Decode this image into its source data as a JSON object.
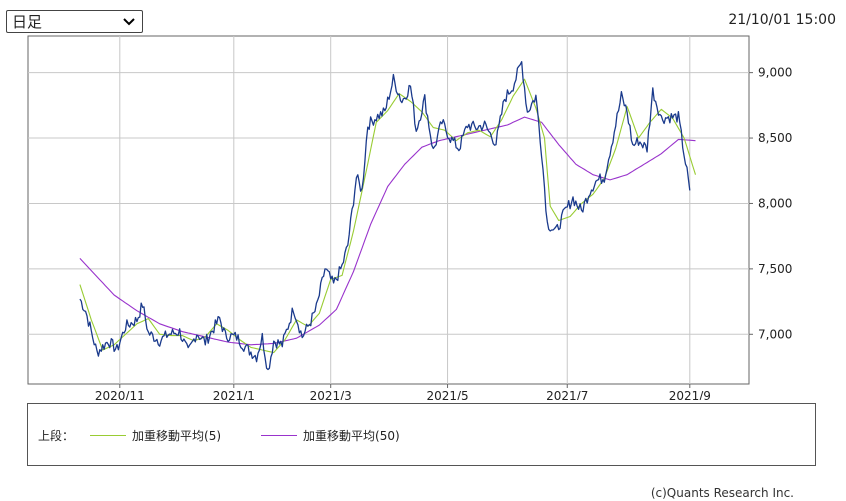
{
  "controls": {
    "period_label": "日足"
  },
  "timestamp": "21/10/01 15:00",
  "legend": {
    "prefix": "上段：",
    "items": [
      {
        "label": "加重移動平均(5)",
        "color": "#99cc33"
      },
      {
        "label": "加重移動平均(50)",
        "color": "#9933cc"
      }
    ]
  },
  "credit": "(c)Quants Research Inc.",
  "chart_data": {
    "type": "line",
    "x_tick_labels": [
      "2020/11",
      "2021/1",
      "2021/3",
      "2021/5",
      "2021/7",
      "2021/9"
    ],
    "y_ticks": [
      7000,
      7500,
      8000,
      8500,
      9000
    ],
    "y_tick_labels": [
      "7,000",
      "7,500",
      "8,000",
      "8,500",
      "9,000"
    ],
    "ylim": [
      6620,
      9280
    ],
    "x_range": [
      0,
      240
    ],
    "x_tick_positions": [
      28,
      68,
      102,
      143,
      185,
      228
    ],
    "grid": true,
    "series": [
      {
        "color": "#1a3a8c",
        "anchors": [
          [
            14,
            7270
          ],
          [
            16,
            7180
          ],
          [
            20,
            6860
          ],
          [
            24,
            6950
          ],
          [
            27,
            6880
          ],
          [
            30,
            7060
          ],
          [
            34,
            7110
          ],
          [
            36,
            7230
          ],
          [
            38,
            7010
          ],
          [
            42,
            6950
          ],
          [
            45,
            7000
          ],
          [
            49,
            7020
          ],
          [
            52,
            6860
          ],
          [
            55,
            7010
          ],
          [
            58,
            6940
          ],
          [
            63,
            7120
          ],
          [
            65,
            6990
          ],
          [
            69,
            6980
          ],
          [
            72,
            6900
          ],
          [
            76,
            6830
          ],
          [
            78,
            6980
          ],
          [
            80,
            6720
          ],
          [
            82,
            6950
          ],
          [
            85,
            6920
          ],
          [
            89,
            7200
          ],
          [
            92,
            6980
          ],
          [
            95,
            7100
          ],
          [
            97,
            7200
          ],
          [
            100,
            7500
          ],
          [
            103,
            7380
          ],
          [
            106,
            7520
          ],
          [
            108,
            7680
          ],
          [
            111,
            8200
          ],
          [
            113,
            8100
          ],
          [
            115,
            8600
          ],
          [
            118,
            8660
          ],
          [
            121,
            8700
          ],
          [
            124,
            8950
          ],
          [
            127,
            8780
          ],
          [
            130,
            8900
          ],
          [
            132,
            8560
          ],
          [
            135,
            8800
          ],
          [
            138,
            8400
          ],
          [
            141,
            8620
          ],
          [
            144,
            8500
          ],
          [
            147,
            8420
          ],
          [
            150,
            8600
          ],
          [
            153,
            8580
          ],
          [
            156,
            8600
          ],
          [
            160,
            8460
          ],
          [
            163,
            8800
          ],
          [
            166,
            8900
          ],
          [
            169,
            9080
          ],
          [
            171,
            8700
          ],
          [
            174,
            8820
          ],
          [
            176,
            8400
          ],
          [
            178,
            7850
          ],
          [
            181,
            7780
          ],
          [
            184,
            7930
          ],
          [
            187,
            8040
          ],
          [
            190,
            7940
          ],
          [
            193,
            8100
          ],
          [
            195,
            8170
          ],
          [
            198,
            8200
          ],
          [
            201,
            8500
          ],
          [
            204,
            8820
          ],
          [
            206,
            8700
          ],
          [
            208,
            8440
          ],
          [
            210,
            8480
          ],
          [
            213,
            8420
          ],
          [
            215,
            8860
          ],
          [
            218,
            8650
          ],
          [
            221,
            8660
          ],
          [
            224,
            8660
          ],
          [
            226,
            8380
          ],
          [
            228,
            8100
          ]
        ]
      },
      {
        "name": "加重移動平均(5)",
        "color": "#99cc33",
        "anchors": [
          [
            14,
            7380
          ],
          [
            18,
            7110
          ],
          [
            22,
            6880
          ],
          [
            26,
            6920
          ],
          [
            30,
            7000
          ],
          [
            34,
            7080
          ],
          [
            38,
            7120
          ],
          [
            42,
            7000
          ],
          [
            46,
            6990
          ],
          [
            50,
            6990
          ],
          [
            54,
            6950
          ],
          [
            58,
            6980
          ],
          [
            62,
            7080
          ],
          [
            66,
            7030
          ],
          [
            70,
            6960
          ],
          [
            74,
            6900
          ],
          [
            78,
            6880
          ],
          [
            82,
            6860
          ],
          [
            86,
            6960
          ],
          [
            90,
            7110
          ],
          [
            94,
            7060
          ],
          [
            98,
            7160
          ],
          [
            102,
            7420
          ],
          [
            106,
            7450
          ],
          [
            110,
            7790
          ],
          [
            114,
            8200
          ],
          [
            118,
            8620
          ],
          [
            122,
            8710
          ],
          [
            126,
            8840
          ],
          [
            130,
            8780
          ],
          [
            134,
            8700
          ],
          [
            138,
            8580
          ],
          [
            142,
            8560
          ],
          [
            146,
            8480
          ],
          [
            150,
            8540
          ],
          [
            154,
            8560
          ],
          [
            158,
            8510
          ],
          [
            162,
            8640
          ],
          [
            166,
            8820
          ],
          [
            170,
            8950
          ],
          [
            174,
            8730
          ],
          [
            177,
            8500
          ],
          [
            179,
            7980
          ],
          [
            182,
            7870
          ],
          [
            186,
            7900
          ],
          [
            190,
            8000
          ],
          [
            194,
            8070
          ],
          [
            198,
            8190
          ],
          [
            202,
            8420
          ],
          [
            206,
            8740
          ],
          [
            210,
            8500
          ],
          [
            214,
            8620
          ],
          [
            218,
            8720
          ],
          [
            222,
            8650
          ],
          [
            226,
            8500
          ],
          [
            230,
            8220
          ]
        ]
      },
      {
        "name": "加重移動平均(50)",
        "color": "#9933cc",
        "anchors": [
          [
            14,
            7580
          ],
          [
            20,
            7440
          ],
          [
            26,
            7300
          ],
          [
            34,
            7180
          ],
          [
            42,
            7080
          ],
          [
            50,
            7020
          ],
          [
            58,
            6980
          ],
          [
            66,
            6940
          ],
          [
            74,
            6920
          ],
          [
            82,
            6930
          ],
          [
            90,
            6970
          ],
          [
            98,
            7070
          ],
          [
            104,
            7190
          ],
          [
            110,
            7480
          ],
          [
            116,
            7840
          ],
          [
            122,
            8130
          ],
          [
            128,
            8300
          ],
          [
            134,
            8430
          ],
          [
            140,
            8480
          ],
          [
            148,
            8520
          ],
          [
            156,
            8560
          ],
          [
            164,
            8600
          ],
          [
            170,
            8660
          ],
          [
            176,
            8620
          ],
          [
            182,
            8450
          ],
          [
            188,
            8300
          ],
          [
            194,
            8220
          ],
          [
            200,
            8180
          ],
          [
            206,
            8220
          ],
          [
            212,
            8300
          ],
          [
            218,
            8380
          ],
          [
            224,
            8490
          ],
          [
            230,
            8480
          ]
        ]
      }
    ]
  }
}
